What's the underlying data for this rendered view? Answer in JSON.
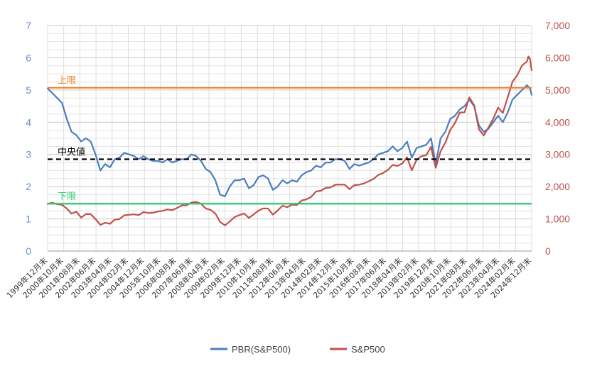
{
  "chart_data": {
    "type": "line",
    "title": "",
    "xlabel": "",
    "ylabel_left": "",
    "ylabel_right": "",
    "y_left_lim": [
      0,
      7
    ],
    "y_left_ticks": [
      "0",
      "1",
      "2",
      "3",
      "4",
      "5",
      "6",
      "7"
    ],
    "y_right_lim": [
      0,
      7000
    ],
    "y_right_ticks": [
      "0",
      "1,000",
      "2,000",
      "3,000",
      "4,000",
      "5,000",
      "6,000",
      "7,000"
    ],
    "x_ticks": [
      "1999年12月末",
      "2000年10月末",
      "2001年08月末",
      "2002年06月末",
      "2003年04月末",
      "2004年02月末",
      "2004年12月末",
      "2005年10月末",
      "2006年08月末",
      "2007年06月末",
      "2008年04月末",
      "2009年02月末",
      "2009年12月末",
      "2010年10月末",
      "2011年08月末",
      "2012年06月末",
      "2013年04月末",
      "2014年02月末",
      "2014年12月末",
      "2015年10月末",
      "2016年08月末",
      "2017年06月末",
      "2018年04月末",
      "2019年02月末",
      "2019年12月末",
      "2020年10月末",
      "2021年08月末",
      "2022年06月末",
      "2023年04月末",
      "2024年02月末",
      "2024年12月末"
    ],
    "grid": true,
    "legend_position": "bottom",
    "reference_lines": [
      {
        "label": "上限",
        "value": 5.07,
        "color": "#e8822a",
        "style": "solid"
      },
      {
        "label": "中央値",
        "value": 2.85,
        "color": "#000000",
        "style": "dashed"
      },
      {
        "label": "下限",
        "value": 1.47,
        "color": "#2ecc71",
        "style": "solid"
      }
    ],
    "series": [
      {
        "name": "PBR(S&P500)",
        "axis": "left",
        "color": "#4a7ebf",
        "points": [
          [
            "1999-12",
            5.05
          ],
          [
            "2000-03",
            4.9
          ],
          [
            "2000-06",
            4.75
          ],
          [
            "2000-09",
            4.6
          ],
          [
            "2000-12",
            4.1
          ],
          [
            "2001-03",
            3.7
          ],
          [
            "2001-06",
            3.6
          ],
          [
            "2001-09",
            3.4
          ],
          [
            "2001-12",
            3.5
          ],
          [
            "2002-03",
            3.4
          ],
          [
            "2002-06",
            3.0
          ],
          [
            "2002-09",
            2.5
          ],
          [
            "2002-12",
            2.7
          ],
          [
            "2003-03",
            2.6
          ],
          [
            "2003-06",
            2.85
          ],
          [
            "2003-09",
            2.9
          ],
          [
            "2003-12",
            3.05
          ],
          [
            "2004-03",
            3.0
          ],
          [
            "2004-06",
            2.95
          ],
          [
            "2004-09",
            2.85
          ],
          [
            "2004-12",
            2.95
          ],
          [
            "2005-03",
            2.85
          ],
          [
            "2005-06",
            2.8
          ],
          [
            "2005-09",
            2.8
          ],
          [
            "2005-12",
            2.75
          ],
          [
            "2006-03",
            2.85
          ],
          [
            "2006-06",
            2.75
          ],
          [
            "2006-09",
            2.8
          ],
          [
            "2006-12",
            2.85
          ],
          [
            "2007-03",
            2.85
          ],
          [
            "2007-06",
            3.0
          ],
          [
            "2007-09",
            2.95
          ],
          [
            "2007-12",
            2.8
          ],
          [
            "2008-03",
            2.55
          ],
          [
            "2008-06",
            2.45
          ],
          [
            "2008-09",
            2.2
          ],
          [
            "2008-12",
            1.75
          ],
          [
            "2009-03",
            1.7
          ],
          [
            "2009-06",
            2.0
          ],
          [
            "2009-09",
            2.2
          ],
          [
            "2009-12",
            2.2
          ],
          [
            "2010-03",
            2.25
          ],
          [
            "2010-06",
            1.95
          ],
          [
            "2010-09",
            2.05
          ],
          [
            "2010-12",
            2.3
          ],
          [
            "2011-03",
            2.35
          ],
          [
            "2011-06",
            2.25
          ],
          [
            "2011-09",
            1.9
          ],
          [
            "2011-12",
            2.0
          ],
          [
            "2012-03",
            2.2
          ],
          [
            "2012-06",
            2.1
          ],
          [
            "2012-09",
            2.2
          ],
          [
            "2012-12",
            2.15
          ],
          [
            "2013-03",
            2.35
          ],
          [
            "2013-06",
            2.45
          ],
          [
            "2013-09",
            2.5
          ],
          [
            "2013-12",
            2.65
          ],
          [
            "2014-03",
            2.6
          ],
          [
            "2014-06",
            2.75
          ],
          [
            "2014-09",
            2.75
          ],
          [
            "2014-12",
            2.85
          ],
          [
            "2015-03",
            2.85
          ],
          [
            "2015-06",
            2.8
          ],
          [
            "2015-09",
            2.55
          ],
          [
            "2015-12",
            2.7
          ],
          [
            "2016-03",
            2.65
          ],
          [
            "2016-06",
            2.7
          ],
          [
            "2016-09",
            2.75
          ],
          [
            "2016-12",
            2.85
          ],
          [
            "2017-03",
            3.0
          ],
          [
            "2017-06",
            3.05
          ],
          [
            "2017-09",
            3.1
          ],
          [
            "2017-12",
            3.25
          ],
          [
            "2018-03",
            3.1
          ],
          [
            "2018-06",
            3.2
          ],
          [
            "2018-09",
            3.4
          ],
          [
            "2018-12",
            2.9
          ],
          [
            "2019-03",
            3.2
          ],
          [
            "2019-06",
            3.25
          ],
          [
            "2019-09",
            3.3
          ],
          [
            "2019-12",
            3.5
          ],
          [
            "2020-03",
            2.7
          ],
          [
            "2020-06",
            3.5
          ],
          [
            "2020-09",
            3.7
          ],
          [
            "2020-12",
            4.1
          ],
          [
            "2021-03",
            4.2
          ],
          [
            "2021-06",
            4.4
          ],
          [
            "2021-09",
            4.5
          ],
          [
            "2021-12",
            4.7
          ],
          [
            "2022-03",
            4.5
          ],
          [
            "2022-06",
            3.9
          ],
          [
            "2022-09",
            3.7
          ],
          [
            "2022-12",
            3.8
          ],
          [
            "2023-03",
            4.0
          ],
          [
            "2023-06",
            4.2
          ],
          [
            "2023-09",
            4.0
          ],
          [
            "2023-12",
            4.3
          ],
          [
            "2024-03",
            4.7
          ],
          [
            "2024-06",
            4.85
          ],
          [
            "2024-09",
            5.0
          ],
          [
            "2024-12",
            5.15
          ],
          [
            "2025-01",
            5.1
          ],
          [
            "2025-02",
            5.05
          ],
          [
            "2025-03",
            4.85
          ]
        ]
      },
      {
        "name": "S&P500",
        "axis": "right",
        "color": "#c0504d",
        "points": [
          [
            "1999-12",
            1469
          ],
          [
            "2000-03",
            1499
          ],
          [
            "2000-06",
            1455
          ],
          [
            "2000-09",
            1436
          ],
          [
            "2000-12",
            1320
          ],
          [
            "2001-03",
            1160
          ],
          [
            "2001-06",
            1224
          ],
          [
            "2001-09",
            1040
          ],
          [
            "2001-12",
            1148
          ],
          [
            "2002-03",
            1147
          ],
          [
            "2002-06",
            990
          ],
          [
            "2002-09",
            815
          ],
          [
            "2002-12",
            880
          ],
          [
            "2003-03",
            848
          ],
          [
            "2003-06",
            975
          ],
          [
            "2003-09",
            996
          ],
          [
            "2003-12",
            1112
          ],
          [
            "2004-03",
            1126
          ],
          [
            "2004-06",
            1141
          ],
          [
            "2004-09",
            1115
          ],
          [
            "2004-12",
            1212
          ],
          [
            "2005-03",
            1181
          ],
          [
            "2005-06",
            1191
          ],
          [
            "2005-09",
            1229
          ],
          [
            "2005-12",
            1248
          ],
          [
            "2006-03",
            1295
          ],
          [
            "2006-06",
            1270
          ],
          [
            "2006-09",
            1336
          ],
          [
            "2006-12",
            1418
          ],
          [
            "2007-03",
            1421
          ],
          [
            "2007-06",
            1503
          ],
          [
            "2007-09",
            1527
          ],
          [
            "2007-12",
            1468
          ],
          [
            "2008-03",
            1323
          ],
          [
            "2008-06",
            1280
          ],
          [
            "2008-09",
            1166
          ],
          [
            "2008-12",
            903
          ],
          [
            "2009-03",
            798
          ],
          [
            "2009-06",
            919
          ],
          [
            "2009-09",
            1057
          ],
          [
            "2009-12",
            1115
          ],
          [
            "2010-03",
            1169
          ],
          [
            "2010-06",
            1031
          ],
          [
            "2010-09",
            1141
          ],
          [
            "2010-12",
            1258
          ],
          [
            "2011-03",
            1326
          ],
          [
            "2011-06",
            1321
          ],
          [
            "2011-09",
            1131
          ],
          [
            "2011-12",
            1258
          ],
          [
            "2012-03",
            1408
          ],
          [
            "2012-06",
            1362
          ],
          [
            "2012-09",
            1441
          ],
          [
            "2012-12",
            1426
          ],
          [
            "2013-03",
            1569
          ],
          [
            "2013-06",
            1606
          ],
          [
            "2013-09",
            1682
          ],
          [
            "2013-12",
            1848
          ],
          [
            "2014-03",
            1872
          ],
          [
            "2014-06",
            1960
          ],
          [
            "2014-09",
            1972
          ],
          [
            "2014-12",
            2059
          ],
          [
            "2015-03",
            2068
          ],
          [
            "2015-06",
            2063
          ],
          [
            "2015-09",
            1920
          ],
          [
            "2015-12",
            2044
          ],
          [
            "2016-03",
            2060
          ],
          [
            "2016-06",
            2099
          ],
          [
            "2016-09",
            2168
          ],
          [
            "2016-12",
            2239
          ],
          [
            "2017-03",
            2363
          ],
          [
            "2017-06",
            2423
          ],
          [
            "2017-09",
            2519
          ],
          [
            "2017-12",
            2674
          ],
          [
            "2018-03",
            2641
          ],
          [
            "2018-06",
            2718
          ],
          [
            "2018-09",
            2914
          ],
          [
            "2018-12",
            2507
          ],
          [
            "2019-03",
            2834
          ],
          [
            "2019-06",
            2942
          ],
          [
            "2019-09",
            2977
          ],
          [
            "2019-12",
            3231
          ],
          [
            "2020-03",
            2585
          ],
          [
            "2020-06",
            3100
          ],
          [
            "2020-09",
            3363
          ],
          [
            "2020-12",
            3756
          ],
          [
            "2021-03",
            3973
          ],
          [
            "2021-06",
            4298
          ],
          [
            "2021-09",
            4308
          ],
          [
            "2021-12",
            4766
          ],
          [
            "2022-03",
            4530
          ],
          [
            "2022-06",
            3785
          ],
          [
            "2022-09",
            3586
          ],
          [
            "2022-12",
            3840
          ],
          [
            "2023-03",
            4109
          ],
          [
            "2023-06",
            4450
          ],
          [
            "2023-09",
            4288
          ],
          [
            "2023-12",
            4770
          ],
          [
            "2024-03",
            5254
          ],
          [
            "2024-06",
            5460
          ],
          [
            "2024-09",
            5762
          ],
          [
            "2024-12",
            5882
          ],
          [
            "2025-01",
            6040
          ],
          [
            "2025-02",
            5955
          ],
          [
            "2025-03",
            5612
          ]
        ]
      }
    ]
  }
}
